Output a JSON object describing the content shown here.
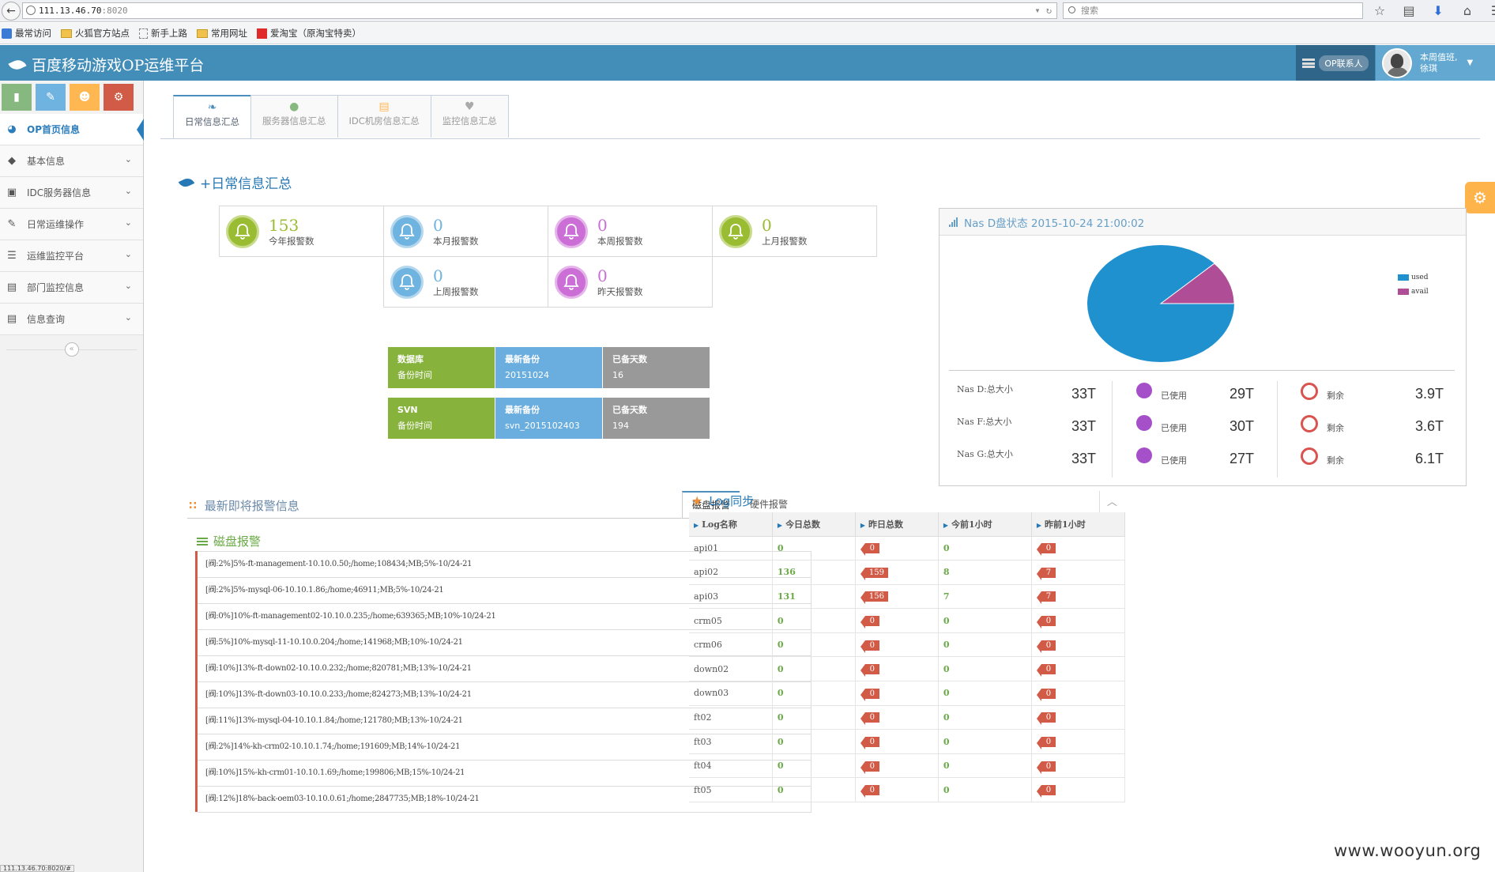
{
  "browser": {
    "url": "111.13.46.70",
    "url_port": ":8020",
    "search_placeholder": "搜索",
    "status_url": "111.13.46.70:8020/#",
    "bookmarks": [
      "最常访问",
      "火狐官方站点",
      "新手上路",
      "常用网址",
      "爱淘宝（原淘宝特卖）"
    ]
  },
  "header": {
    "app_title": "百度移动游戏OP运维平台",
    "op_contact": "OP联系人",
    "user_line1": "本周值班,",
    "user_line2": "徐琪"
  },
  "sidebar": {
    "items": [
      {
        "label": "OP首页信息",
        "icon": "dashboard-icon"
      },
      {
        "label": "基本信息",
        "icon": "tag-icon"
      },
      {
        "label": "IDC服务器信息",
        "icon": "desktop-icon"
      },
      {
        "label": "日常运维操作",
        "icon": "edit-icon"
      },
      {
        "label": "运维监控平台",
        "icon": "list-icon"
      },
      {
        "label": "部门监控信息",
        "icon": "list-alt-icon"
      },
      {
        "label": "信息查询",
        "icon": "list-alt-icon"
      }
    ],
    "collapse_glyph": "«"
  },
  "tabs": [
    {
      "label": "日常信息汇总",
      "icon": "leaf-icon"
    },
    {
      "label": "服务器信息汇总",
      "icon": "user-icon"
    },
    {
      "label": "IDC机房信息汇总",
      "icon": "credit-card-icon"
    },
    {
      "label": "监控信息汇总",
      "icon": "heart-icon"
    }
  ],
  "section_title": "+日常信息汇总",
  "infoboxes": [
    {
      "value": "153",
      "label": "今年报警数",
      "color": "green"
    },
    {
      "value": "0",
      "label": "本月报警数",
      "color": "blue"
    },
    {
      "value": "0",
      "label": "本周报警数",
      "color": "pink"
    },
    {
      "value": "0",
      "label": "上月报警数",
      "color": "green"
    },
    {
      "value": "0",
      "label": "上周报警数",
      "color": "blue"
    },
    {
      "value": "0",
      "label": "昨天报警数",
      "color": "pink"
    }
  ],
  "backups": [
    {
      "c1_title": "数据库",
      "c1_sub": "备份时间",
      "c2_title": "最新备份",
      "c2_val": "20151024",
      "c3_title": "已备天数",
      "c3_val": "16"
    },
    {
      "c1_title": "SVN",
      "c1_sub": "备份时间",
      "c2_title": "最新备份",
      "c2_val": "svn_2015102403",
      "c3_title": "已备天数",
      "c3_val": "194"
    }
  ],
  "nas": {
    "title": "Nas D盘状态  2015-10-24 21:00:02",
    "legend_used": "used",
    "legend_avail": "avail",
    "used_color": "#2091cf",
    "avail_color": "#af4e96",
    "used_fraction": 0.88,
    "used_label": "已使用",
    "remain_label": "剩余",
    "rows": [
      {
        "label": "Nas D:总大小",
        "total": "33T",
        "used": "29T",
        "remain": "3.9T"
      },
      {
        "label": "Nas F:总大小",
        "total": "33T",
        "used": "30T",
        "remain": "3.6T"
      },
      {
        "label": "Nas G:总大小",
        "total": "33T",
        "used": "27T",
        "remain": "6.1T"
      }
    ]
  },
  "alerts": {
    "title": "最新即将报警信息",
    "tab_disk": "磁盘报警",
    "tab_hw": "硬件报警",
    "disk_title": "磁盘报警",
    "items": [
      "[阀:2%]5%-ft-management-10.10.0.50;/home;108434;MB;5%-10/24-21",
      "[阀:2%]5%-mysql-06-10.10.1.86;/home;46911;MB;5%-10/24-21",
      "[阀:0%]10%-ft-management02-10.10.0.235;/home;639365;MB;10%-10/24-21",
      "[阀:5%]10%-mysql-11-10.10.0.204;/home;141968;MB;10%-10/24-21",
      "[阀:10%]13%-ft-down02-10.10.0.232;/home;820781;MB;13%-10/24-21",
      "[阀:10%]13%-ft-down03-10.10.0.233;/home;824273;MB;13%-10/24-21",
      "[阀:11%]13%-mysql-04-10.10.1.84;/home;121780;MB;13%-10/24-21",
      "[阀:2%]14%-kh-crm02-10.10.1.74;/home;191609;MB;14%-10/24-21",
      "[阀:10%]15%-kh-crm01-10.10.1.69;/home;199806;MB;15%-10/24-21",
      "[阀:12%]18%-back-oem03-10.10.0.61;/home;2847735;MB;18%-10/24-21"
    ]
  },
  "log": {
    "title": "Log同步",
    "collapse_glyph": "︿",
    "headers": [
      "Log名称",
      "今日总数",
      "昨日总数",
      "今前1小时",
      "昨前1小时"
    ],
    "rows": [
      [
        "api01",
        "0",
        "0",
        "0",
        "0"
      ],
      [
        "api02",
        "136",
        "159",
        "8",
        "7"
      ],
      [
        "api03",
        "131",
        "156",
        "7",
        "7"
      ],
      [
        "crm05",
        "0",
        "0",
        "0",
        "0"
      ],
      [
        "crm06",
        "0",
        "0",
        "0",
        "0"
      ],
      [
        "down02",
        "0",
        "0",
        "0",
        "0"
      ],
      [
        "down03",
        "0",
        "0",
        "0",
        "0"
      ],
      [
        "ft02",
        "0",
        "0",
        "0",
        "0"
      ],
      [
        "ft03",
        "0",
        "0",
        "0",
        "0"
      ],
      [
        "ft04",
        "0",
        "0",
        "0",
        "0"
      ],
      [
        "ft05",
        "0",
        "0",
        "0",
        "0"
      ]
    ]
  },
  "watermark": "www.wooyun.org"
}
